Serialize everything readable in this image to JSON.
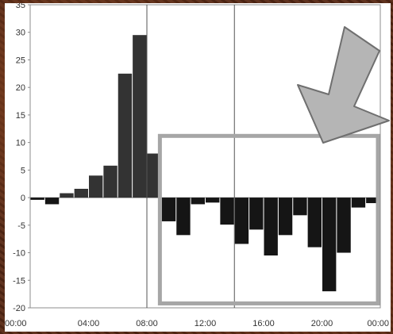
{
  "chart_data": {
    "type": "bar",
    "title": "",
    "xlabel": "",
    "ylabel": "",
    "ylim": [
      -20,
      35
    ],
    "yticks": [
      35,
      30,
      25,
      20,
      15,
      10,
      5,
      0,
      -5,
      -10,
      -15,
      -20
    ],
    "xlim_hours": [
      0,
      24
    ],
    "xticks": [
      {
        "label": "00:00",
        "hour": 0
      },
      {
        "label": "04:00",
        "hour": 4
      },
      {
        "label": "08:00",
        "hour": 8
      },
      {
        "label": "12:00",
        "hour": 12
      },
      {
        "label": "16:00",
        "hour": 16
      },
      {
        "label": "20:00",
        "hour": 20
      },
      {
        "label": "00:00",
        "hour": 24
      }
    ],
    "reference_lines_hours": [
      8,
      14
    ],
    "categories": [
      "00:00",
      "01:00",
      "02:00",
      "03:00",
      "04:00",
      "05:00",
      "06:00",
      "07:00",
      "08:00",
      "09:00",
      "10:00",
      "11:00",
      "12:00",
      "13:00",
      "14:00",
      "15:00",
      "16:00",
      "17:00",
      "18:00",
      "19:00",
      "20:00",
      "21:00",
      "22:00",
      "23:00"
    ],
    "series": [
      {
        "values": [
          -0.4,
          -1.2,
          0.8,
          1.6,
          4.0,
          5.8,
          22.5,
          29.5,
          8.0,
          -4.3,
          -6.8,
          -1.2,
          -0.9,
          -4.9,
          -8.4,
          -5.8,
          -10.5,
          -6.8,
          -3.2,
          -9.0,
          -17.0,
          -10.0,
          -1.8,
          -1.0
        ]
      }
    ],
    "positive_color": "#333333",
    "negative_color": "#151515",
    "annotations": {
      "highlight_box": {
        "start_hour": 9,
        "end_hour": 24,
        "color": "#a6a6a6"
      },
      "arrow": {
        "direction": "down-left",
        "color": "#b5b5b5"
      }
    }
  }
}
